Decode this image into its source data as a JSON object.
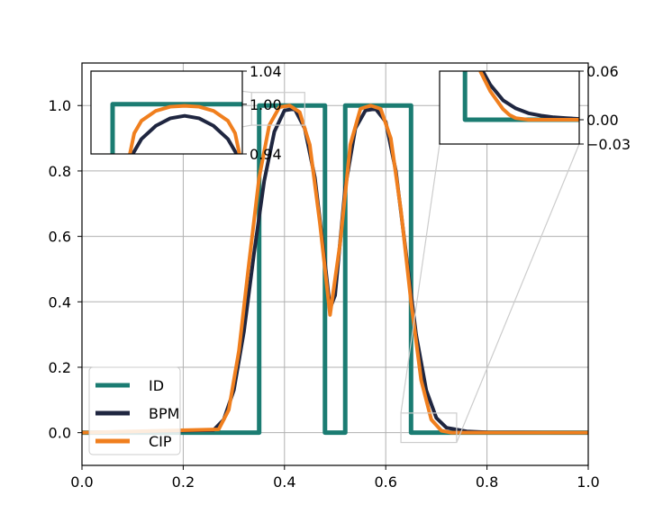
{
  "chart_data": {
    "type": "line",
    "title": "",
    "xlabel": "",
    "ylabel": "",
    "xlim": [
      0.0,
      1.0
    ],
    "ylim": [
      -0.1,
      1.13
    ],
    "xticks": [
      "0.0",
      "0.2",
      "0.4",
      "0.6",
      "0.8",
      "1.0"
    ],
    "yticks": [
      "0.0",
      "0.2",
      "0.4",
      "0.6",
      "0.8",
      "1.0"
    ],
    "grid": true,
    "legend_position": "lower-left",
    "series": [
      {
        "name": "ID",
        "color": "#1b7c72",
        "x": [
          0.0,
          0.35,
          0.35,
          0.48,
          0.48,
          0.52,
          0.52,
          0.65,
          0.65,
          1.0
        ],
        "y": [
          0.0,
          0.0,
          1.0,
          1.0,
          0.0,
          0.0,
          1.0,
          1.0,
          0.0,
          0.0
        ]
      },
      {
        "name": "BPM",
        "color": "#1f2640",
        "x": [
          0.0,
          0.26,
          0.28,
          0.3,
          0.32,
          0.34,
          0.36,
          0.38,
          0.4,
          0.42,
          0.44,
          0.46,
          0.48,
          0.49,
          0.5,
          0.52,
          0.54,
          0.56,
          0.58,
          0.6,
          0.62,
          0.64,
          0.66,
          0.68,
          0.7,
          0.72,
          0.76,
          0.8,
          1.0
        ],
        "y": [
          0.0,
          0.008,
          0.04,
          0.13,
          0.31,
          0.55,
          0.77,
          0.92,
          0.985,
          0.99,
          0.93,
          0.78,
          0.52,
          0.38,
          0.42,
          0.75,
          0.93,
          0.985,
          0.99,
          0.95,
          0.8,
          0.55,
          0.3,
          0.13,
          0.045,
          0.015,
          0.004,
          0.001,
          0.0
        ]
      },
      {
        "name": "CIP",
        "color": "#f07f1e",
        "x": [
          0.0,
          0.27,
          0.29,
          0.31,
          0.33,
          0.35,
          0.37,
          0.39,
          0.41,
          0.43,
          0.45,
          0.47,
          0.49,
          0.51,
          0.53,
          0.55,
          0.57,
          0.59,
          0.61,
          0.63,
          0.65,
          0.67,
          0.69,
          0.71,
          0.73,
          1.0
        ],
        "y": [
          0.0,
          0.01,
          0.07,
          0.25,
          0.52,
          0.78,
          0.94,
          0.995,
          1.0,
          0.98,
          0.88,
          0.64,
          0.36,
          0.58,
          0.88,
          0.99,
          1.0,
          0.99,
          0.9,
          0.68,
          0.4,
          0.16,
          0.04,
          0.006,
          0.0,
          0.0
        ]
      }
    ],
    "insets": [
      {
        "xlim": [
          0.335,
          0.44
        ],
        "ylim": [
          0.94,
          1.04
        ],
        "yticks": [
          "0.94",
          "1.00",
          "1.04"
        ],
        "series": [
          {
            "name": "ID",
            "x": [
              0.35,
              0.35,
              0.44
            ],
            "y": [
              0.94,
              1.0,
              1.0
            ]
          },
          {
            "name": "BPM",
            "x": [
              0.364,
              0.37,
              0.38,
              0.39,
              0.4,
              0.41,
              0.42,
              0.43,
              0.436
            ],
            "y": [
              0.94,
              0.958,
              0.974,
              0.983,
              0.986,
              0.983,
              0.974,
              0.958,
              0.94
            ]
          },
          {
            "name": "CIP",
            "x": [
              0.362,
              0.365,
              0.37,
              0.38,
              0.39,
              0.4,
              0.41,
              0.42,
              0.43,
              0.435,
              0.438
            ],
            "y": [
              0.94,
              0.965,
              0.98,
              0.992,
              0.997,
              0.998,
              0.997,
              0.992,
              0.98,
              0.965,
              0.94
            ]
          }
        ]
      },
      {
        "xlim": [
          0.63,
          0.74
        ],
        "ylim": [
          -0.03,
          0.06
        ],
        "yticks": [
          "0.06",
          "0.00",
          "−0.03"
        ],
        "series": [
          {
            "name": "ID",
            "x": [
              0.65,
              0.65,
              0.74
            ],
            "y": [
              0.06,
              0.0,
              0.0
            ]
          },
          {
            "name": "BPM",
            "x": [
              0.664,
              0.67,
              0.68,
              0.69,
              0.7,
              0.71,
              0.72,
              0.73,
              0.74
            ],
            "y": [
              0.06,
              0.043,
              0.024,
              0.014,
              0.008,
              0.005,
              0.003,
              0.002,
              0.001
            ]
          },
          {
            "name": "CIP",
            "x": [
              0.662,
              0.67,
              0.68,
              0.685,
              0.69,
              0.7,
              0.74
            ],
            "y": [
              0.06,
              0.035,
              0.013,
              0.006,
              0.002,
              0.0,
              0.0
            ]
          }
        ]
      }
    ]
  }
}
